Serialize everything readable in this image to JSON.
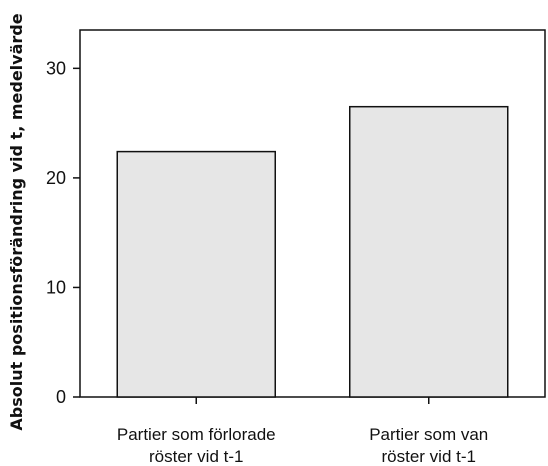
{
  "chart_data": {
    "type": "bar",
    "categories": [
      [
        "Partier som förlorade",
        "röster vid t-1"
      ],
      [
        "Partier  som  van",
        "röster vid t-1"
      ]
    ],
    "values": [
      22.4,
      26.5
    ],
    "title": "",
    "xlabel": "",
    "ylabel": "Absolut positionsförändring vid t, medelvärde",
    "ylim": [
      0,
      33.5
    ],
    "yticks": [
      0,
      10,
      20,
      30
    ],
    "grid": false,
    "bar_color": "#e6e6e6",
    "edge_color": "#111111"
  }
}
